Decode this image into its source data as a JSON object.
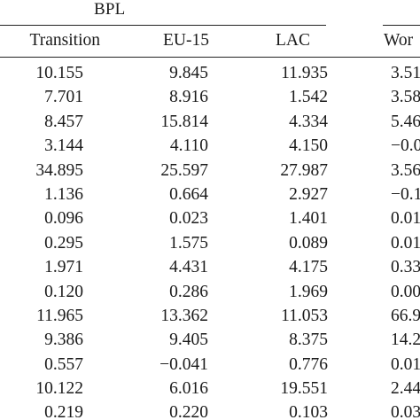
{
  "table": {
    "group_label": "BPL",
    "headers": [
      "Transition",
      "EU-15",
      "LAC",
      "Wor"
    ],
    "rows": [
      [
        "10.155",
        "9.845",
        "11.935",
        "3.51"
      ],
      [
        "7.701",
        "8.916",
        "1.542",
        "3.58"
      ],
      [
        "8.457",
        "15.814",
        "4.334",
        "5.46"
      ],
      [
        "3.144",
        "4.110",
        "4.150",
        "−0.0"
      ],
      [
        "34.895",
        "25.597",
        "27.987",
        "3.56"
      ],
      [
        "1.136",
        "0.664",
        "2.927",
        "−0.1"
      ],
      [
        "0.096",
        "0.023",
        "1.401",
        "0.01"
      ],
      [
        "0.295",
        "1.575",
        "0.089",
        "0.01"
      ],
      [
        "1.971",
        "4.431",
        "4.175",
        "0.33"
      ],
      [
        "0.120",
        "0.286",
        "1.969",
        "0.00"
      ],
      [
        "11.965",
        "13.362",
        "11.053",
        "66.9"
      ],
      [
        "9.386",
        "9.405",
        "8.375",
        "14.2"
      ],
      [
        "0.557",
        "−0.041",
        "0.776",
        "0.01"
      ],
      [
        "10.122",
        "6.016",
        "19.551",
        "2.44"
      ],
      [
        "0.219",
        "0.220",
        "0.103",
        "0.03"
      ]
    ]
  }
}
